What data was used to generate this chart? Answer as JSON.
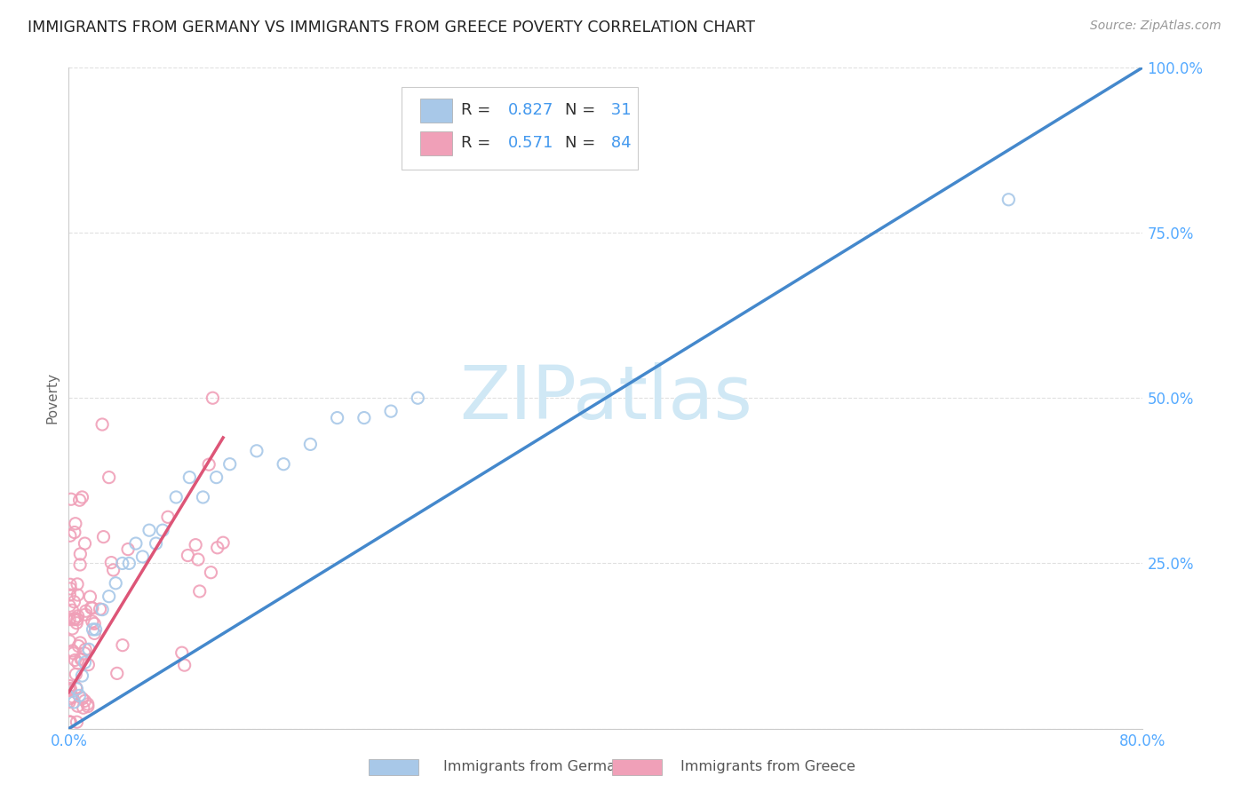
{
  "title": "IMMIGRANTS FROM GERMANY VS IMMIGRANTS FROM GREECE POVERTY CORRELATION CHART",
  "source": "Source: ZipAtlas.com",
  "ylabel": "Poverty",
  "xlim": [
    0,
    0.8
  ],
  "ylim": [
    0,
    1.0
  ],
  "germany_color": "#a8c8e8",
  "greece_color": "#f0a0b8",
  "germany_edge_color": "#85b0d8",
  "greece_edge_color": "#e080a0",
  "germany_line_color": "#4488cc",
  "greece_line_color": "#dd5577",
  "ref_line_color": "#c8c8c8",
  "legend_text_color": "#333333",
  "legend_num_color": "#4499ee",
  "tick_color": "#55aaff",
  "watermark_color": "#d0e8f5",
  "germany_R": 0.827,
  "germany_N": 31,
  "greece_R": 0.571,
  "greece_N": 84,
  "germany_line_x0": 0.0,
  "germany_line_y0": 0.0,
  "germany_line_x1": 0.8,
  "germany_line_y1": 1.0,
  "greece_line_x0": 0.0,
  "greece_line_y0": 0.055,
  "greece_line_x1": 0.115,
  "greece_line_y1": 0.44
}
